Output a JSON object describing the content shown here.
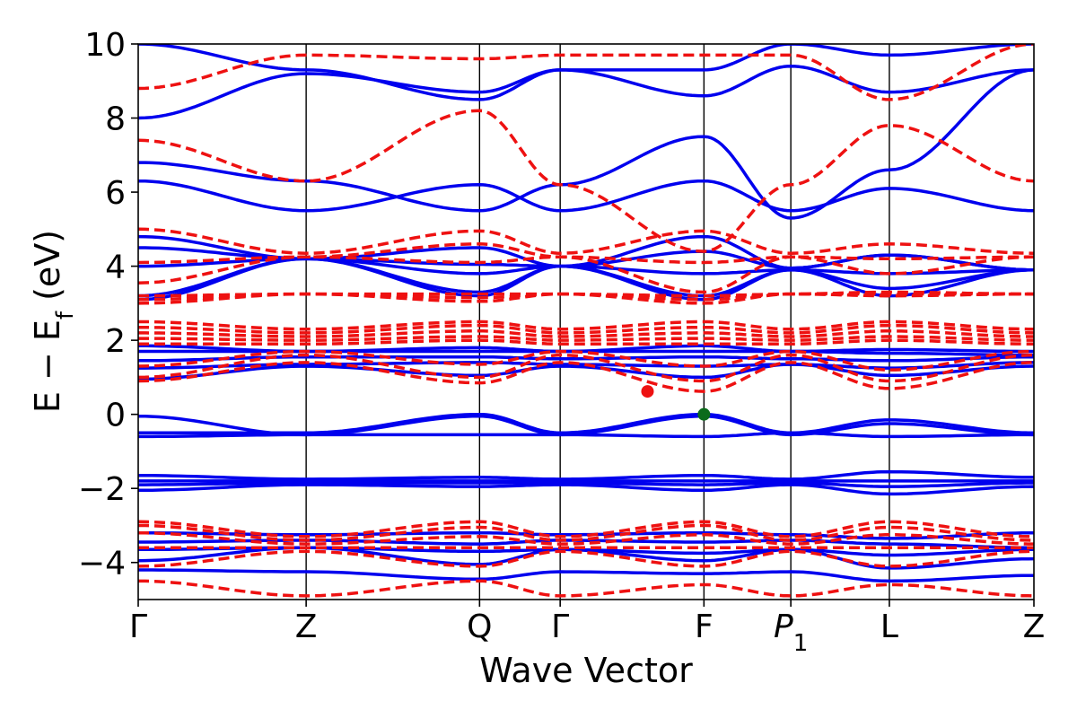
{
  "chart_data": {
    "type": "line",
    "xlabel": "Wave Vector",
    "ylabel_main": "E − E",
    "ylabel_sub": "f",
    "ylabel_unit": " (eV)",
    "ylim": [
      -5,
      10
    ],
    "yticks": [
      10,
      8,
      6,
      4,
      2,
      0,
      -2,
      -4
    ],
    "ytick_labels": [
      "10",
      "8",
      "6",
      "4",
      "2",
      "0",
      "−2",
      "−4"
    ],
    "grid": false,
    "legend": "none",
    "kpath": [
      {
        "label": "Γ",
        "x": 0.0
      },
      {
        "label": "Z",
        "x": 0.1875
      },
      {
        "label": "Q",
        "x": 0.3811
      },
      {
        "label": "Γ",
        "x": 0.4711
      },
      {
        "label": "F",
        "x": 0.6316
      },
      {
        "label": "P",
        "sub": "1",
        "x": 0.7286
      },
      {
        "label": "L",
        "x": 0.8386
      },
      {
        "label": "Z",
        "x": 1.0
      }
    ],
    "colors": {
      "spin_up": "#0000ee",
      "spin_down": "#ee1111",
      "vbm": "#0b6b1b"
    },
    "series": [
      {
        "style": "solid",
        "color": "#0000ee",
        "energies": [
          [
            -0.05,
            -0.55,
            -0.05,
            -0.55,
            -0.05,
            -0.55,
            -0.25,
            -0.55
          ],
          [
            -0.5,
            -0.5,
            0.0,
            -0.5,
            0.0,
            -0.5,
            -0.15,
            -0.5
          ],
          [
            -0.6,
            -0.55,
            -0.55,
            -0.55,
            -0.6,
            -0.5,
            -0.6,
            -0.55
          ],
          [
            -1.65,
            -1.75,
            -1.7,
            -1.75,
            -1.65,
            -1.75,
            -1.55,
            -1.7
          ],
          [
            -1.8,
            -1.8,
            -1.8,
            -1.8,
            -1.8,
            -1.8,
            -1.8,
            -1.8
          ],
          [
            -1.9,
            -1.85,
            -1.85,
            -1.85,
            -1.9,
            -1.85,
            -1.95,
            -1.85
          ],
          [
            -2.05,
            -1.9,
            -1.95,
            -1.9,
            -2.05,
            -1.9,
            -2.15,
            -1.95
          ],
          [
            -3.2,
            -3.25,
            -3.2,
            -3.25,
            -3.2,
            -3.25,
            -3.35,
            -3.2
          ],
          [
            -3.45,
            -3.4,
            -3.5,
            -3.4,
            -3.45,
            -3.4,
            -3.5,
            -3.6
          ],
          [
            -3.65,
            -3.6,
            -3.7,
            -3.65,
            -3.75,
            -3.65,
            -3.8,
            -3.65
          ],
          [
            -3.95,
            -3.6,
            -4.05,
            -3.65,
            -3.95,
            -3.65,
            -4.15,
            -3.9
          ],
          [
            -4.2,
            -4.25,
            -4.45,
            -4.25,
            -4.3,
            -4.25,
            -4.5,
            -4.35
          ],
          [
            0.95,
            1.3,
            1.05,
            1.3,
            1.0,
            1.35,
            1.05,
            1.3
          ],
          [
            1.25,
            1.35,
            1.4,
            1.35,
            1.3,
            1.35,
            1.25,
            1.4
          ],
          [
            1.45,
            1.55,
            1.55,
            1.5,
            1.55,
            1.5,
            1.45,
            1.55
          ],
          [
            1.7,
            1.7,
            1.7,
            1.7,
            1.7,
            1.7,
            1.75,
            1.7
          ],
          [
            1.85,
            1.7,
            1.8,
            1.7,
            1.85,
            1.7,
            1.65,
            1.6
          ],
          [
            3.1,
            4.2,
            3.2,
            4.0,
            3.1,
            3.9,
            3.2,
            3.9
          ],
          [
            3.2,
            4.2,
            3.3,
            4.0,
            3.2,
            3.9,
            3.4,
            3.9
          ],
          [
            4.0,
            4.2,
            3.8,
            4.0,
            3.8,
            3.9,
            3.8,
            3.9
          ],
          [
            4.5,
            4.2,
            4.05,
            4.0,
            4.4,
            3.95,
            4.3,
            3.9
          ],
          [
            4.8,
            4.2,
            4.5,
            4.0,
            4.8,
            3.95,
            4.3,
            3.9
          ],
          [
            6.3,
            5.5,
            6.2,
            5.5,
            6.3,
            5.5,
            6.1,
            5.5
          ],
          [
            6.8,
            6.3,
            5.5,
            6.2,
            7.5,
            5.3,
            6.6,
            9.3
          ],
          [
            8.0,
            9.2,
            8.7,
            9.3,
            8.6,
            9.4,
            8.7,
            9.3
          ],
          [
            10.0,
            9.3,
            8.5,
            9.3,
            9.3,
            10.0,
            9.7,
            10.0
          ]
        ]
      },
      {
        "style": "dashed",
        "color": "#ee1111",
        "energies": [
          [
            3.0,
            3.25,
            3.05,
            3.25,
            3.0,
            3.25,
            3.2,
            3.25
          ],
          [
            3.1,
            3.25,
            3.15,
            3.25,
            3.1,
            3.25,
            3.25,
            3.25
          ],
          [
            3.2,
            3.25,
            3.25,
            3.25,
            3.2,
            3.25,
            3.3,
            3.25
          ],
          [
            3.55,
            4.25,
            4.1,
            4.25,
            3.3,
            4.25,
            3.8,
            4.25
          ],
          [
            4.1,
            4.25,
            4.6,
            4.25,
            4.1,
            4.25,
            4.2,
            4.25
          ],
          [
            5.0,
            4.35,
            4.95,
            4.35,
            4.95,
            4.35,
            4.6,
            4.35
          ],
          [
            7.4,
            6.3,
            8.2,
            6.2,
            4.4,
            6.2,
            7.8,
            6.3
          ],
          [
            8.8,
            9.7,
            9.6,
            9.7,
            9.7,
            9.7,
            8.5,
            10.0
          ],
          [
            0.9,
            1.4,
            0.85,
            1.4,
            0.62,
            1.4,
            0.7,
            1.4
          ],
          [
            1.0,
            1.6,
            1.0,
            1.6,
            0.9,
            1.6,
            0.9,
            1.6
          ],
          [
            1.3,
            1.7,
            1.35,
            1.7,
            1.3,
            1.7,
            1.2,
            1.7
          ],
          [
            1.9,
            1.9,
            2.0,
            1.9,
            1.9,
            1.9,
            2.0,
            1.9
          ],
          [
            2.05,
            2.0,
            2.1,
            2.0,
            2.05,
            2.0,
            2.1,
            2.0
          ],
          [
            2.2,
            2.1,
            2.25,
            2.1,
            2.2,
            2.1,
            2.25,
            2.1
          ],
          [
            2.35,
            2.2,
            2.4,
            2.2,
            2.35,
            2.2,
            2.4,
            2.2
          ],
          [
            2.5,
            2.3,
            2.5,
            2.3,
            2.5,
            2.3,
            2.5,
            2.3
          ],
          [
            -2.9,
            -3.3,
            -2.9,
            -3.3,
            -2.9,
            -3.3,
            -2.9,
            -3.3
          ],
          [
            -3.0,
            -3.4,
            -3.05,
            -3.4,
            -3.0,
            -3.4,
            -3.05,
            -3.4
          ],
          [
            -3.2,
            -3.5,
            -3.3,
            -3.5,
            -3.25,
            -3.5,
            -3.25,
            -3.5
          ],
          [
            -3.6,
            -3.6,
            -3.6,
            -3.6,
            -3.6,
            -3.6,
            -3.6,
            -3.6
          ],
          [
            -4.1,
            -3.7,
            -4.1,
            -3.7,
            -4.1,
            -3.7,
            -4.1,
            -3.7
          ],
          [
            -4.5,
            -4.9,
            -4.5,
            -4.9,
            -4.6,
            -4.9,
            -4.6,
            -4.9
          ]
        ]
      }
    ],
    "markers": [
      {
        "x": 0.5686,
        "y": 0.62,
        "color": "#ee1111"
      },
      {
        "x": 0.6316,
        "y": 0.0,
        "color": "#0b6b1b"
      }
    ]
  }
}
